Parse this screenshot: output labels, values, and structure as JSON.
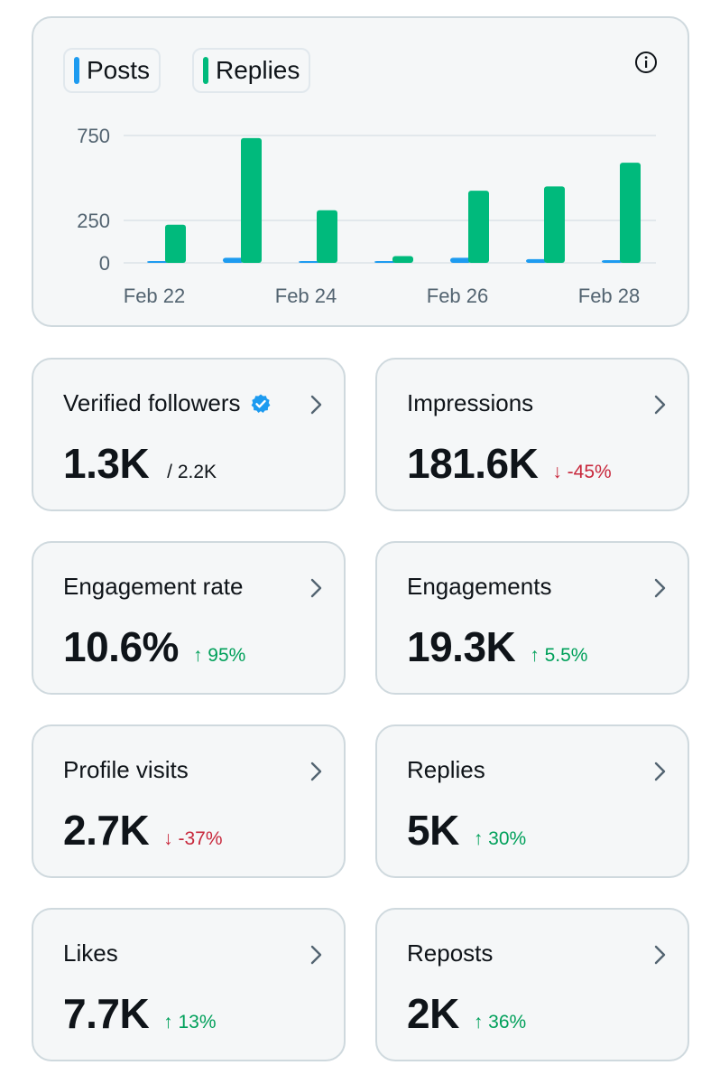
{
  "colors": {
    "posts": "#1d9bf0",
    "replies": "#00ba7c",
    "up": "#00a05a",
    "down": "#c8283c",
    "verified": "#1d9bf0"
  },
  "legend": {
    "posts": "Posts",
    "replies": "Replies"
  },
  "icons": {
    "info": "info-icon",
    "chevron": "chevron-right-icon",
    "verified": "verified-badge-icon"
  },
  "chart_data": {
    "type": "bar",
    "categories": [
      "Feb 22",
      "Feb 23",
      "Feb 24",
      "Feb 25",
      "Feb 26",
      "Feb 27",
      "Feb 28"
    ],
    "x_tick_labels": [
      "Feb 22",
      "Feb 24",
      "Feb 26",
      "Feb 28"
    ],
    "y_ticks": [
      0,
      250,
      750
    ],
    "ylim": [
      0,
      800
    ],
    "series": [
      {
        "name": "Posts",
        "values": [
          8,
          30,
          4,
          5,
          30,
          22,
          16
        ]
      },
      {
        "name": "Replies",
        "values": [
          225,
          735,
          310,
          40,
          425,
          450,
          590
        ]
      }
    ],
    "title": "",
    "xlabel": "",
    "ylabel": ""
  },
  "stats": [
    {
      "title": "Verified followers",
      "value": "1.3K",
      "sub": "/ 2.2K",
      "delta": "",
      "dir": "",
      "verified": true
    },
    {
      "title": "Impressions",
      "value": "181.6K",
      "sub": "",
      "delta": "↓ -45%",
      "dir": "down"
    },
    {
      "title": "Engagement rate",
      "value": "10.6%",
      "sub": "",
      "delta": "↑ 95%",
      "dir": "up"
    },
    {
      "title": "Engagements",
      "value": "19.3K",
      "sub": "",
      "delta": "↑ 5.5%",
      "dir": "up"
    },
    {
      "title": "Profile visits",
      "value": "2.7K",
      "sub": "",
      "delta": "↓ -37%",
      "dir": "down"
    },
    {
      "title": "Replies",
      "value": "5K",
      "sub": "",
      "delta": "↑ 30%",
      "dir": "up"
    },
    {
      "title": "Likes",
      "value": "7.7K",
      "sub": "",
      "delta": "↑ 13%",
      "dir": "up"
    },
    {
      "title": "Reposts",
      "value": "2K",
      "sub": "",
      "delta": "↑ 36%",
      "dir": "up"
    }
  ]
}
